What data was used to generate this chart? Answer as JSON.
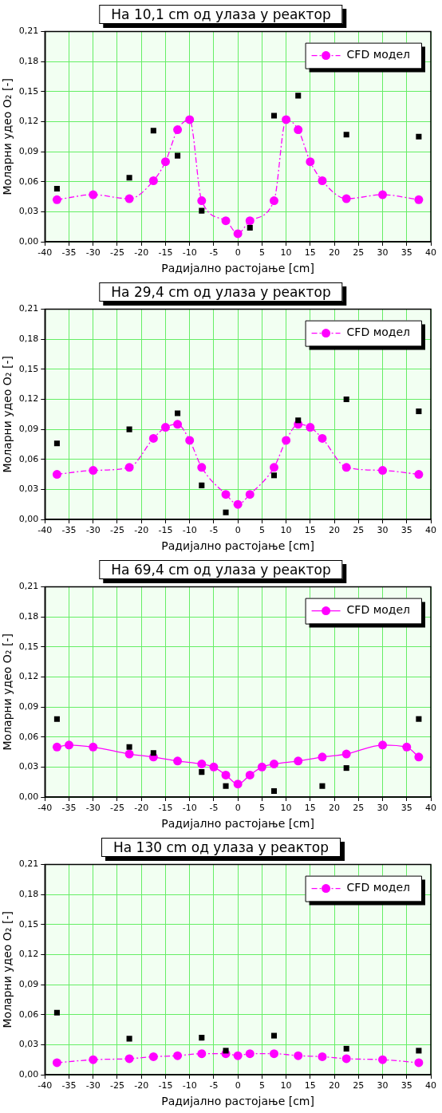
{
  "chart_data": [
    {
      "type": "scatter",
      "title": "На 10,1 cm од улаза у реактор",
      "xlabel": "Радијално растојање [cm]",
      "ylabel": "Моларни удео O₂ [-]",
      "x": [
        -37.5,
        -22.5,
        -17.5,
        -12.5,
        -7.5,
        2.5,
        7.5,
        12.5,
        22.5,
        37.5
      ],
      "series": [
        {
          "color": "#000000",
          "marker": "square",
          "values": [
            0.053,
            0.064,
            0.111,
            0.086,
            0.031,
            0.014,
            0.126,
            0.146,
            0.107,
            0.105
          ]
        },
        {
          "name": "CFD модел",
          "type": "line",
          "color": "#ff00ff",
          "marker": "circle",
          "line_style": "dashed",
          "x": [
            -37.5,
            -30,
            -22.5,
            -17.5,
            -15,
            -12.5,
            -10,
            -7.5,
            -2.5,
            0,
            2.5,
            7.5,
            10,
            12.5,
            15,
            17.5,
            22.5,
            30,
            37.5
          ],
          "values": [
            0.042,
            0.047,
            0.043,
            0.061,
            0.08,
            0.112,
            0.122,
            0.041,
            0.021,
            0.008,
            0.021,
            0.041,
            0.122,
            0.112,
            0.08,
            0.061,
            0.043,
            0.047,
            0.042
          ]
        }
      ],
      "xlim": [
        -40,
        40
      ],
      "xticks": [
        -40,
        -35,
        -30,
        -25,
        -20,
        -15,
        -10,
        -5,
        0,
        5,
        10,
        15,
        20,
        25,
        30,
        35,
        40
      ],
      "ylim": [
        0,
        0.21
      ],
      "yticks": [
        {
          "value": 0,
          "label": "0,00"
        },
        {
          "value": 0.03,
          "label": "0,03"
        },
        {
          "value": 0.06,
          "label": "0,06"
        },
        {
          "value": 0.09,
          "label": "0,09"
        },
        {
          "value": 0.12,
          "label": "0,12"
        },
        {
          "value": 0.15,
          "label": "0,15"
        },
        {
          "value": 0.18,
          "label": "0,18"
        },
        {
          "value": 0.21,
          "label": "0,21"
        }
      ],
      "grid": true,
      "legend": "top right"
    },
    {
      "type": "scatter",
      "title": "На 29,4 cm од улаза у реактор",
      "xlabel": "Радијално растојање [cm]",
      "ylabel": "Моларни удео O₂ [-]",
      "x": [
        -37.5,
        -22.5,
        -12.5,
        -7.5,
        -2.5,
        7.5,
        12.5,
        22.5,
        37.5
      ],
      "series": [
        {
          "color": "#000000",
          "marker": "square",
          "values": [
            0.076,
            0.09,
            0.106,
            0.034,
            0.007,
            0.044,
            0.099,
            0.12,
            0.108
          ]
        },
        {
          "name": "CFD модел",
          "type": "line",
          "color": "#ff00ff",
          "marker": "circle",
          "line_style": "dashed",
          "x": [
            -37.5,
            -30,
            -22.5,
            -17.5,
            -15,
            -12.5,
            -10,
            -7.5,
            -2.5,
            0,
            2.5,
            7.5,
            10,
            12.5,
            15,
            17.5,
            22.5,
            30,
            37.5
          ],
          "values": [
            0.045,
            0.049,
            0.052,
            0.081,
            0.092,
            0.095,
            0.079,
            0.052,
            0.025,
            0.015,
            0.025,
            0.052,
            0.079,
            0.095,
            0.092,
            0.081,
            0.052,
            0.049,
            0.045
          ]
        }
      ],
      "xlim": [
        -40,
        40
      ],
      "xticks": [
        -40,
        -35,
        -30,
        -25,
        -20,
        -15,
        -10,
        -5,
        0,
        5,
        10,
        15,
        20,
        25,
        30,
        35,
        40
      ],
      "ylim": [
        0,
        0.21
      ],
      "yticks": [
        {
          "value": 0,
          "label": "0,00"
        },
        {
          "value": 0.03,
          "label": "0,03"
        },
        {
          "value": 0.06,
          "label": "0,06"
        },
        {
          "value": 0.09,
          "label": "0,09"
        },
        {
          "value": 0.12,
          "label": "0,12"
        },
        {
          "value": 0.15,
          "label": "0,15"
        },
        {
          "value": 0.18,
          "label": "0,18"
        },
        {
          "value": 0.21,
          "label": "0,21"
        }
      ],
      "grid": true,
      "legend": "top right"
    },
    {
      "type": "scatter",
      "title": "На 69,4 cm од улаза у реактор",
      "xlabel": "Радијално растојање [cm]",
      "ylabel": "Моларни удео O₂ [-]",
      "x": [
        -37.5,
        -22.5,
        -17.5,
        -7.5,
        -2.5,
        7.5,
        17.5,
        22.5,
        37.5
      ],
      "series": [
        {
          "color": "#000000",
          "marker": "square",
          "values": [
            0.078,
            0.05,
            0.044,
            0.025,
            0.011,
            0.006,
            0.011,
            0.029,
            0.078
          ]
        },
        {
          "name": "CFD модел",
          "type": "line",
          "color": "#ff00ff",
          "marker": "circle",
          "line_style": "solid",
          "x": [
            -37.5,
            -35,
            -30,
            -22.5,
            -17.5,
            -12.5,
            -7.5,
            -5,
            -2.5,
            0,
            2.5,
            5,
            7.5,
            12.5,
            17.5,
            22.5,
            30,
            35,
            37.5
          ],
          "values": [
            0.05,
            0.052,
            0.05,
            0.043,
            0.04,
            0.036,
            0.033,
            0.03,
            0.022,
            0.013,
            0.022,
            0.03,
            0.033,
            0.036,
            0.04,
            0.043,
            0.052,
            0.05,
            0.04
          ]
        }
      ],
      "xlim": [
        -40,
        40
      ],
      "xticks": [
        -40,
        -35,
        -30,
        -25,
        -20,
        -15,
        -10,
        -5,
        0,
        5,
        10,
        15,
        20,
        25,
        30,
        35,
        40
      ],
      "ylim": [
        0,
        0.21
      ],
      "yticks": [
        {
          "value": 0,
          "label": "0,00"
        },
        {
          "value": 0.03,
          "label": "0,03"
        },
        {
          "value": 0.06,
          "label": "0,06"
        },
        {
          "value": 0.09,
          "label": "0,09"
        },
        {
          "value": 0.12,
          "label": "0,12"
        },
        {
          "value": 0.15,
          "label": "0,15"
        },
        {
          "value": 0.18,
          "label": "0,18"
        },
        {
          "value": 0.21,
          "label": "0,21"
        }
      ],
      "grid": true,
      "legend": "top right"
    },
    {
      "type": "scatter",
      "title": "На 130 cm од улаза у реактор",
      "xlabel": "Радијално растојање [cm]",
      "ylabel": "Моларни удео O₂ [-]",
      "x": [
        -37.5,
        -22.5,
        -7.5,
        -2.5,
        7.5,
        22.5,
        37.5
      ],
      "series": [
        {
          "color": "#000000",
          "marker": "square",
          "values": [
            0.062,
            0.036,
            0.037,
            0.024,
            0.039,
            0.026,
            0.024
          ]
        },
        {
          "name": "CFD модел",
          "type": "line",
          "color": "#ff00ff",
          "marker": "circle",
          "line_style": "dashed",
          "x": [
            -37.5,
            -30,
            -22.5,
            -17.5,
            -12.5,
            -7.5,
            -2.5,
            0,
            2.5,
            7.5,
            12.5,
            17.5,
            22.5,
            30,
            37.5
          ],
          "values": [
            0.012,
            0.015,
            0.016,
            0.018,
            0.019,
            0.021,
            0.021,
            0.019,
            0.021,
            0.021,
            0.019,
            0.018,
            0.016,
            0.015,
            0.012
          ]
        }
      ],
      "xlim": [
        -40,
        40
      ],
      "xticks": [
        -40,
        -35,
        -30,
        -25,
        -20,
        -15,
        -10,
        -5,
        0,
        5,
        10,
        15,
        20,
        25,
        30,
        35,
        40
      ],
      "ylim": [
        0,
        0.21
      ],
      "yticks": [
        {
          "value": 0,
          "label": "0,00"
        },
        {
          "value": 0.03,
          "label": "0,03"
        },
        {
          "value": 0.06,
          "label": "0,06"
        },
        {
          "value": 0.09,
          "label": "0,09"
        },
        {
          "value": 0.12,
          "label": "0,12"
        },
        {
          "value": 0.15,
          "label": "0,15"
        },
        {
          "value": 0.18,
          "label": "0,18"
        },
        {
          "value": 0.21,
          "label": "0,21"
        }
      ],
      "grid": true,
      "legend": "top right"
    }
  ]
}
